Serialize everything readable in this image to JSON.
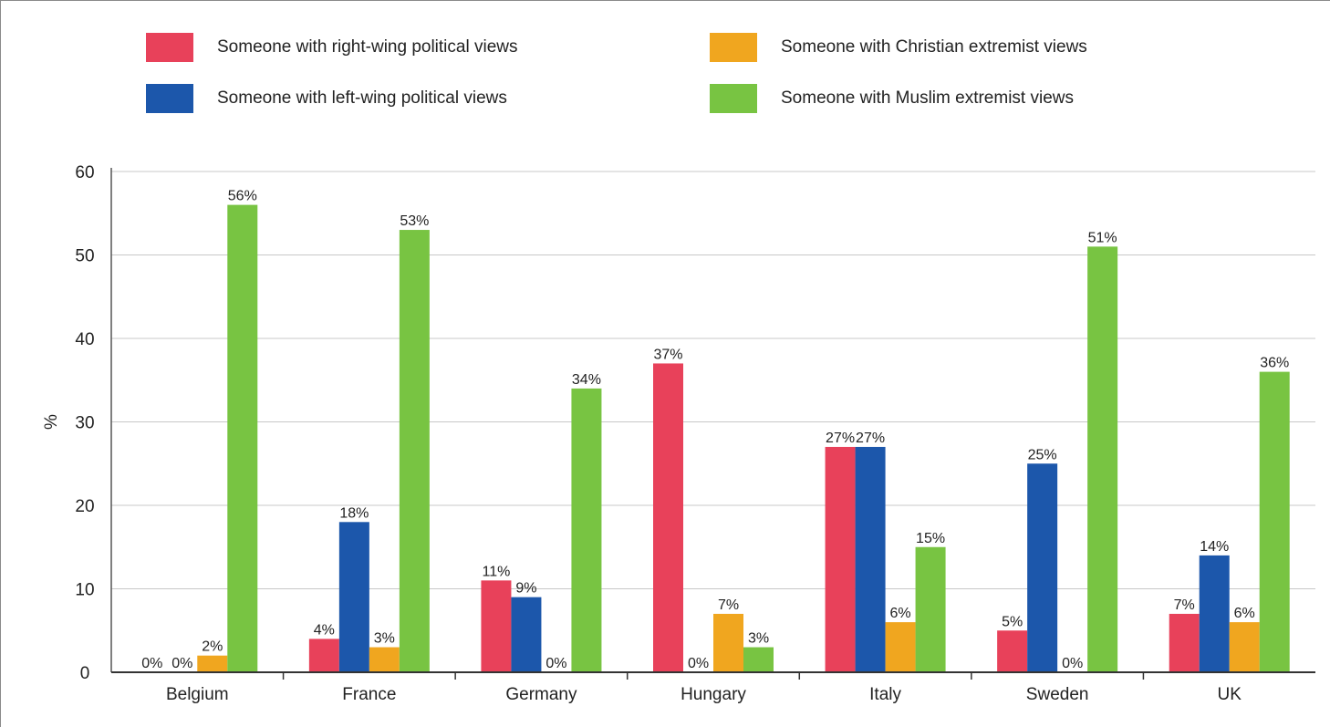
{
  "chart_data": {
    "type": "bar",
    "title": "",
    "xlabel": "",
    "ylabel": "%",
    "ylim": [
      0,
      60
    ],
    "yticks": [
      0,
      10,
      20,
      30,
      40,
      50,
      60
    ],
    "grid": true,
    "legend_position": "top",
    "categories": [
      "Belgium",
      "France",
      "Germany",
      "Hungary",
      "Italy",
      "Sweden",
      "UK"
    ],
    "series": [
      {
        "name": "Someone with right-wing political views",
        "color": "#e8415a",
        "values": [
          0,
          4,
          11,
          37,
          27,
          5,
          7
        ],
        "labels": [
          "0%",
          "4%",
          "11%",
          "37%",
          "27%",
          "5%",
          "7%"
        ]
      },
      {
        "name": "Someone with left-wing political views",
        "color": "#1c57ab",
        "values": [
          0,
          18,
          9,
          0,
          27,
          25,
          14
        ],
        "labels": [
          "0%",
          "18%",
          "9%",
          "0%",
          "27%",
          "25%",
          "14%"
        ]
      },
      {
        "name": "Someone with Christian extremist views",
        "color": "#f0a61f",
        "values": [
          2,
          3,
          0,
          7,
          6,
          0,
          6
        ],
        "labels": [
          "2%",
          "3%",
          "0%",
          "7%",
          "6%",
          "0%",
          "6%"
        ]
      },
      {
        "name": "Someone with Muslim extremist views",
        "color": "#78c442",
        "values": [
          56,
          53,
          34,
          3,
          15,
          51,
          36
        ],
        "labels": [
          "56%",
          "53%",
          "34%",
          "3%",
          "15%",
          "51%",
          "36%"
        ]
      }
    ]
  }
}
